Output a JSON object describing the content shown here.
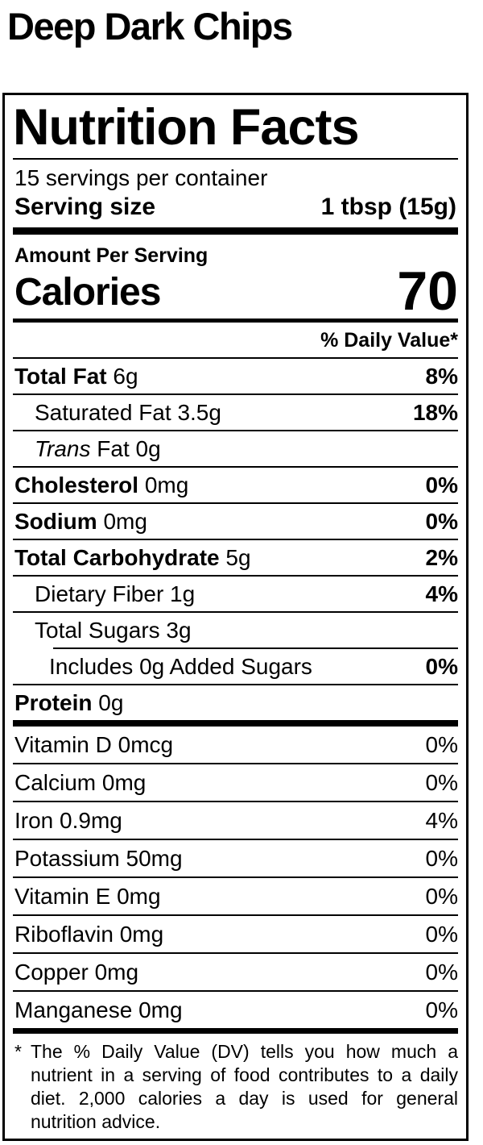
{
  "product_title": "Deep Dark Chips",
  "label": {
    "title": "Nutrition Facts",
    "servings_per_container": "15 servings per container",
    "serving_size_label": "Serving size",
    "serving_size_value": "1 tbsp (15g)",
    "amount_per_serving": "Amount Per Serving",
    "calories_label": "Calories",
    "calories_value": "70",
    "daily_value_header": "% Daily Value*",
    "nutrients": [
      {
        "name": "Total Fat",
        "amount": "6g",
        "dv": "8%"
      },
      {
        "name": "Saturated Fat",
        "amount": "3.5g",
        "dv": "18%"
      },
      {
        "name": "Trans",
        "amount": "Fat 0g",
        "dv": ""
      },
      {
        "name": "Cholesterol",
        "amount": "0mg",
        "dv": "0%"
      },
      {
        "name": "Sodium",
        "amount": "0mg",
        "dv": "0%"
      },
      {
        "name": "Total Carbohydrate",
        "amount": "5g",
        "dv": "2%"
      },
      {
        "name": "Dietary Fiber",
        "amount": "1g",
        "dv": "4%"
      },
      {
        "name": "Total Sugars",
        "amount": "3g",
        "dv": ""
      },
      {
        "name": "Includes 0g Added Sugars",
        "amount": "",
        "dv": "0%"
      },
      {
        "name": "Protein",
        "amount": "0g",
        "dv": ""
      }
    ],
    "micronutrients": [
      {
        "name": "Vitamin D 0mcg",
        "dv": "0%"
      },
      {
        "name": "Calcium 0mg",
        "dv": "0%"
      },
      {
        "name": "Iron 0.9mg",
        "dv": "4%"
      },
      {
        "name": "Potassium 50mg",
        "dv": "0%"
      },
      {
        "name": "Vitamin E 0mg",
        "dv": "0%"
      },
      {
        "name": "Riboflavin 0mg",
        "dv": "0%"
      },
      {
        "name": "Copper 0mg",
        "dv": "0%"
      },
      {
        "name": "Manganese 0mg",
        "dv": "0%"
      }
    ],
    "footnote_marker": "*",
    "footnote": "The % Daily Value (DV) tells you how much a nutrient in a serving of food contributes to a daily diet. 2,000 calories a day is used for general nutrition advice."
  },
  "colors": {
    "ink": "#000000",
    "background": "#ffffff"
  }
}
